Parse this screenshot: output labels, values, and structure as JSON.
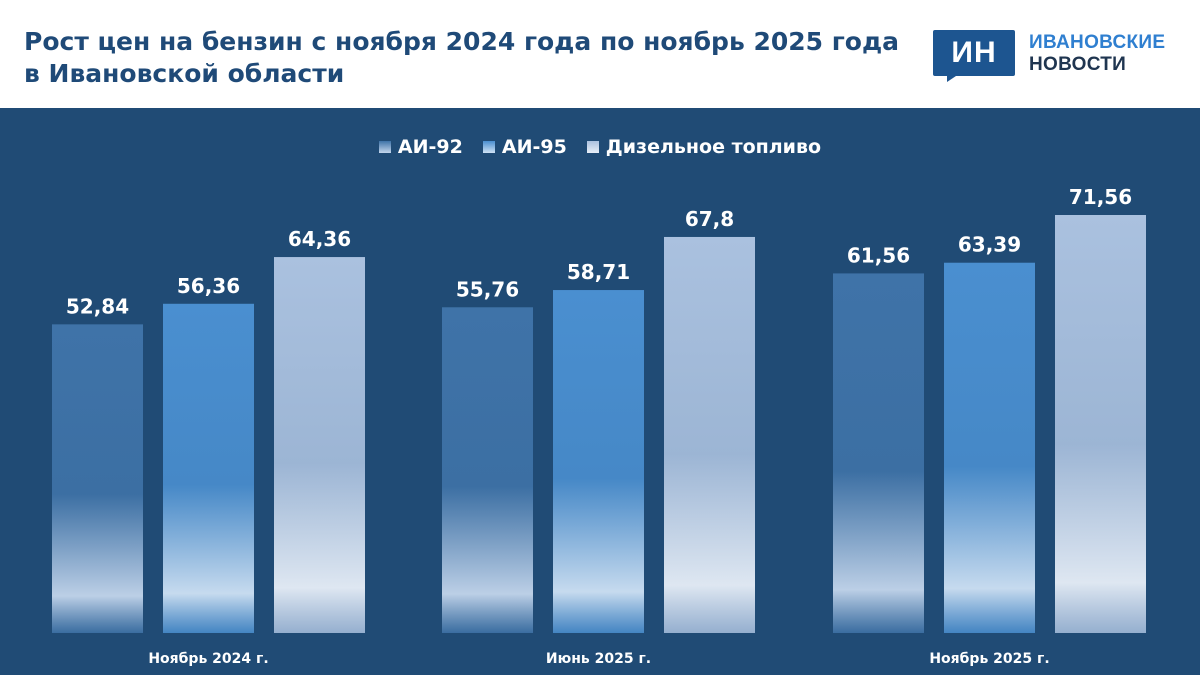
{
  "header": {
    "title_line1": "Рост цен на бензин с ноября 2024 года по ноябрь 2025 года",
    "title_line2": "в Ивановской области"
  },
  "logo": {
    "mark": "ИН",
    "line1": "ИВАНОВСКИЕ",
    "line2": "НОВОСТИ"
  },
  "colors": {
    "title": "#1f4a78",
    "panel": "#204b75",
    "brand": "#1d5590"
  },
  "chart_data": {
    "type": "bar",
    "title": "Рост цен на бензин с ноября 2024 года по ноябрь 2025 года в Ивановской области",
    "categories": [
      "Ноябрь 2024 г.",
      "Июнь 2025 г.",
      "Ноябрь 2025 г."
    ],
    "series": [
      {
        "name": "АИ-92",
        "values": [
          52.84,
          55.76,
          61.56
        ],
        "labels": [
          "52,84",
          "55,76",
          "61,56"
        ],
        "color_top": "#3f73a8",
        "color_bottom": "#c4d6ec"
      },
      {
        "name": "АИ-95",
        "values": [
          56.36,
          58.71,
          63.39
        ],
        "labels": [
          "56,36",
          "58,71",
          "63,39"
        ],
        "color_top": "#4a8fd0",
        "color_bottom": "#cfe2f5"
      },
      {
        "name": "Дизельное топливо",
        "values": [
          64.36,
          67.8,
          71.56
        ],
        "labels": [
          "64,36",
          "67,8",
          "71,56"
        ],
        "color_top": "#aac1df",
        "color_bottom": "#e8eff8"
      }
    ],
    "ylim": [
      0,
      71.56
    ],
    "legend_position": "top-center",
    "grid": false,
    "xlabel": "",
    "ylabel": ""
  }
}
